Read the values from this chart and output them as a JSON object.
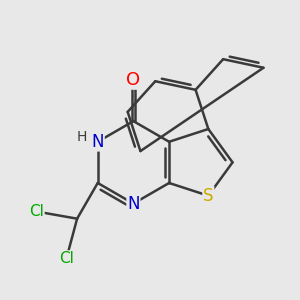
{
  "bg_color": "#e8e8e8",
  "bond_color": "#3a3a3a",
  "bond_width": 1.8,
  "atom_colors": {
    "O": "#ff0000",
    "N": "#0000cc",
    "S": "#ccaa00",
    "Cl": "#00aa00",
    "C": "#3a3a3a",
    "H": "#3a3a3a"
  },
  "font_size": 12,
  "fig_size": [
    3.0,
    3.0
  ],
  "dpi": 100
}
